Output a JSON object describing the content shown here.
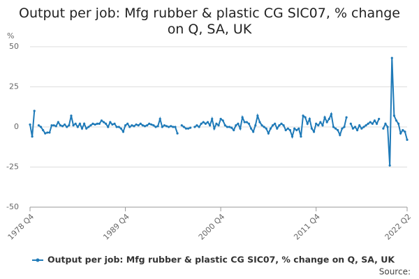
{
  "chart_data": {
    "type": "line",
    "title": "Output per job: Mfg rubber & plastic CG SIC07, % change on Q, SA, UK",
    "y_label": "%",
    "source": "Source:",
    "categories": [
      "1978 Q4",
      null,
      null,
      null,
      null,
      null,
      null,
      null,
      null,
      null,
      null,
      null,
      null,
      null,
      null,
      null,
      null,
      null,
      null,
      null,
      null,
      null,
      null,
      null,
      null,
      null,
      null,
      null,
      null,
      null,
      null,
      null,
      null,
      null,
      null,
      null,
      null,
      null,
      null,
      null,
      null,
      null,
      null,
      null,
      "1989 Q4",
      null,
      null,
      null,
      null,
      null,
      null,
      null,
      null,
      null,
      null,
      null,
      null,
      null,
      null,
      null,
      null,
      null,
      null,
      null,
      null,
      null,
      null,
      null,
      null,
      null,
      null,
      null,
      null,
      null,
      null,
      null,
      null,
      null,
      null,
      null,
      null,
      null,
      null,
      null,
      null,
      null,
      null,
      null,
      "2000 Q4",
      null,
      null,
      null,
      null,
      null,
      null,
      null,
      null,
      null,
      null,
      null,
      null,
      null,
      null,
      null,
      null,
      null,
      null,
      null,
      null,
      null,
      null,
      null,
      null,
      null,
      null,
      null,
      null,
      null,
      null,
      null,
      null,
      null,
      null,
      null,
      null,
      null,
      null,
      null,
      null,
      null,
      null,
      null,
      "2011 Q4",
      null,
      null,
      null,
      null,
      null,
      null,
      null,
      null,
      null,
      null,
      null,
      null,
      null,
      null,
      null,
      null,
      null,
      null,
      null,
      null,
      null,
      null,
      null,
      null,
      null,
      null,
      null,
      null,
      null,
      null,
      null,
      null,
      null,
      null,
      null,
      null,
      null,
      null,
      null,
      null,
      null,
      "2022 Q2"
    ],
    "series": [
      {
        "name": "Output per job: Mfg rubber & plastic CG SIC07, % change on Q, SA, UK",
        "color": "#1f7ab8",
        "values": [
          1.5,
          -6,
          10,
          null,
          1,
          0,
          -2,
          -4,
          -3.5,
          -3.5,
          1,
          1,
          0.5,
          3,
          1,
          0.5,
          1.5,
          0,
          1,
          7,
          1,
          2,
          0,
          2,
          -1,
          2,
          -1,
          0,
          1,
          2,
          1.5,
          2,
          2,
          4,
          3,
          2,
          0,
          3,
          1.5,
          2,
          0,
          0,
          -1,
          -3,
          1,
          2,
          0,
          1,
          0.5,
          1.5,
          1,
          2,
          1,
          0.5,
          1,
          2,
          1.5,
          1,
          0,
          0.5,
          5,
          0,
          1,
          0.5,
          0,
          0.5,
          0,
          0,
          -4,
          null,
          1,
          0,
          -1,
          -1,
          -0.5,
          null,
          0,
          1,
          0,
          2,
          3,
          2,
          3,
          1,
          5,
          -1,
          2,
          1,
          5,
          4,
          1,
          0,
          0,
          -0.5,
          -2,
          1,
          2,
          -1,
          6,
          3,
          3,
          2,
          -1,
          -3,
          1,
          7,
          3,
          1,
          0,
          -1,
          -4,
          -1,
          1,
          2,
          -1,
          1,
          2,
          1,
          -2,
          -1,
          -2,
          -6,
          -1,
          -2,
          -1,
          -6,
          7,
          6,
          2,
          5,
          -1,
          -3,
          2,
          1,
          3,
          1,
          6,
          3,
          5,
          8,
          0,
          -1,
          -2,
          -5,
          -1,
          0,
          6,
          null,
          2,
          -1,
          0,
          -2,
          1,
          -1,
          0,
          1,
          2,
          3,
          2,
          4,
          2,
          5,
          null,
          -1,
          2,
          0,
          -24,
          43,
          7,
          4,
          2,
          -4,
          -2,
          -3,
          -8
        ]
      }
    ],
    "ylim": [
      -50,
      50
    ],
    "yticks": [
      -50,
      -25,
      0,
      25,
      50
    ],
    "grid": true
  }
}
